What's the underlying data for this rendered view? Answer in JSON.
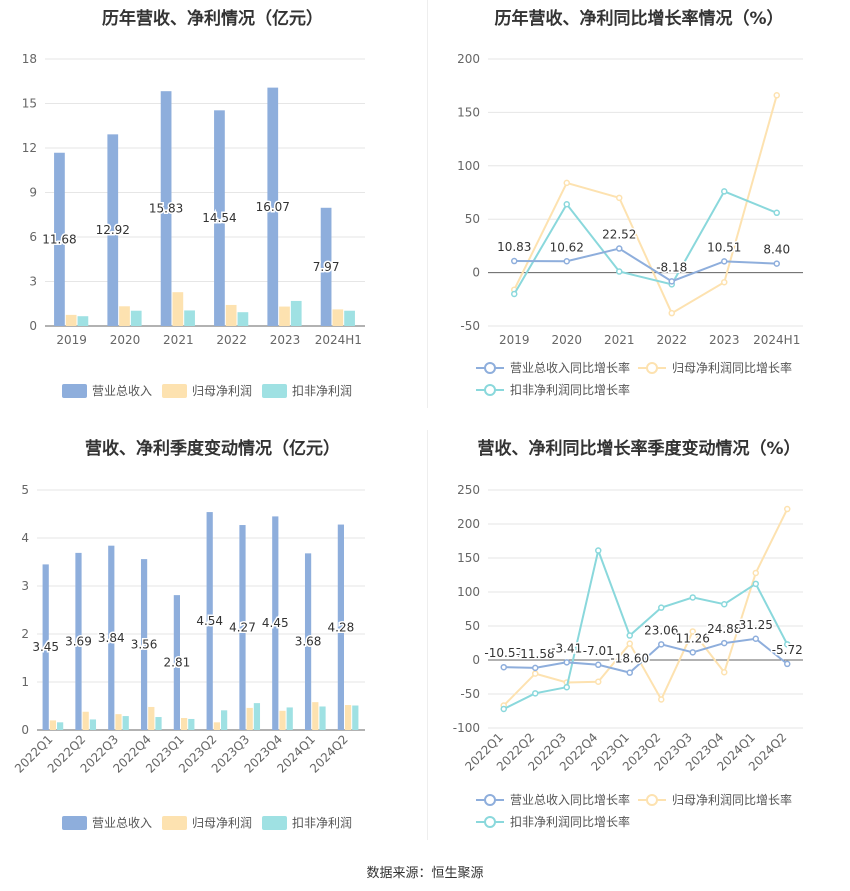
{
  "source": "数据来源：恒生聚源",
  "colors": {
    "revenue": "#8eaedc",
    "net_profit": "#fde2b0",
    "deducted": "#9fe1e3",
    "rev_line": "#8eaedc",
    "np_line": "#fde2b0",
    "ded_line": "#8ad8dc"
  },
  "chart_data": [
    {
      "id": "annual_amount",
      "type": "bar",
      "title": "历年营收、净利情况（亿元）",
      "categories": [
        "2019",
        "2020",
        "2021",
        "2022",
        "2023",
        "2024H1"
      ],
      "ylim": [
        0,
        18
      ],
      "yticks": [
        0,
        3,
        6,
        9,
        12,
        15,
        18
      ],
      "series": [
        {
          "name": "营业总收入",
          "values": [
            11.68,
            12.92,
            15.83,
            14.54,
            16.07,
            7.97
          ],
          "labels": [
            "11.68",
            "12.92",
            "15.83",
            "14.54",
            "16.07",
            "7.97"
          ]
        },
        {
          "name": "归母净利润",
          "values": [
            0.75,
            1.33,
            2.28,
            1.42,
            1.31,
            1.12
          ]
        },
        {
          "name": "扣非净利润",
          "values": [
            0.66,
            1.03,
            1.05,
            0.93,
            1.69,
            1.03
          ]
        }
      ],
      "legend": "bottom"
    },
    {
      "id": "annual_growth",
      "type": "line",
      "title": "历年营收、净利同比增长率情况（%）",
      "categories": [
        "2019",
        "2020",
        "2021",
        "2022",
        "2023",
        "2024H1"
      ],
      "ylim": [
        -50,
        200
      ],
      "yticks": [
        -50,
        0,
        50,
        100,
        150,
        200
      ],
      "series": [
        {
          "name": "营业总收入同比增长率",
          "values": [
            10.83,
            10.62,
            22.52,
            -8.18,
            10.51,
            8.4
          ],
          "labels": [
            "10.83",
            "10.62",
            "22.52",
            "-8.18",
            "10.51",
            "8.40"
          ]
        },
        {
          "name": "归母净利润同比增长率",
          "values": [
            -16,
            84,
            70,
            -38,
            -9,
            166
          ]
        },
        {
          "name": "扣非净利润同比增长率",
          "values": [
            -20,
            64,
            1,
            -11,
            76,
            56
          ]
        }
      ],
      "legend": "bottom"
    },
    {
      "id": "quarterly_amount",
      "type": "bar",
      "title": "营收、净利季度变动情况（亿元）",
      "categories": [
        "2022Q1",
        "2022Q2",
        "2022Q3",
        "2022Q4",
        "2023Q1",
        "2023Q2",
        "2023Q3",
        "2023Q4",
        "2024Q1",
        "2024Q2"
      ],
      "ylim": [
        0,
        5
      ],
      "yticks": [
        0,
        1,
        2,
        3,
        4,
        5
      ],
      "series": [
        {
          "name": "营业总收入",
          "values": [
            3.45,
            3.69,
            3.84,
            3.56,
            2.81,
            4.54,
            4.27,
            4.45,
            3.68,
            4.28
          ],
          "labels": [
            "3.45",
            "3.69",
            "3.84",
            "3.56",
            "2.81",
            "4.54",
            "4.27",
            "4.45",
            "3.68",
            "4.28"
          ]
        },
        {
          "name": "归母净利润",
          "values": [
            0.2,
            0.38,
            0.33,
            0.48,
            0.25,
            0.16,
            0.46,
            0.4,
            0.58,
            0.52
          ]
        },
        {
          "name": "扣非净利润",
          "values": [
            0.16,
            0.22,
            0.29,
            0.27,
            0.23,
            0.41,
            0.56,
            0.47,
            0.49,
            0.51
          ]
        }
      ],
      "legend": "bottom"
    },
    {
      "id": "quarterly_growth",
      "type": "line",
      "title": "营收、净利同比增长率季度变动情况（%）",
      "categories": [
        "2022Q1",
        "2022Q2",
        "2022Q3",
        "2022Q4",
        "2023Q1",
        "2023Q2",
        "2023Q3",
        "2023Q4",
        "2024Q1",
        "2024Q2"
      ],
      "ylim": [
        -100,
        250
      ],
      "yticks": [
        -100,
        -50,
        0,
        50,
        100,
        150,
        200,
        250
      ],
      "series": [
        {
          "name": "营业总收入同比增长率",
          "values": [
            -10.57,
            -11.58,
            -3.41,
            -7.01,
            -18.6,
            23.06,
            11.26,
            24.88,
            31.25,
            -5.72
          ],
          "labels": [
            "-10.57",
            "-11.58",
            "-3.41",
            "-7.01",
            "-18.60",
            "23.06",
            "11.26",
            "24.88",
            "31.25",
            "-5.72"
          ]
        },
        {
          "name": "归母净利润同比增长率",
          "values": [
            -67,
            -20,
            -33,
            -32,
            24,
            -58,
            42,
            -18,
            128,
            222
          ]
        },
        {
          "name": "扣非净利润同比增长率",
          "values": [
            -72,
            -49,
            -40,
            161,
            36,
            77,
            92,
            82,
            112,
            23
          ]
        }
      ],
      "legend": "bottom"
    }
  ]
}
